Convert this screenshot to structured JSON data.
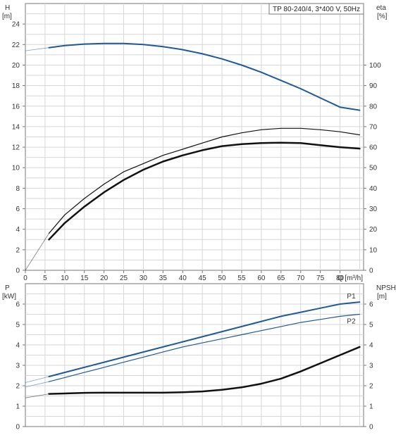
{
  "title": "TP 80-240/4, 3*400 V, 50Hz",
  "colors": {
    "blue": "#1f5a96",
    "black": "#111111",
    "grid": "#d6d6d6",
    "axis": "#777777",
    "text": "#333333"
  },
  "chart_data": [
    {
      "type": "line",
      "id": "top",
      "x_axis": {
        "label": "Q [m³/h]",
        "lim": [
          0,
          86
        ],
        "ticks": [
          0,
          5,
          10,
          15,
          20,
          25,
          30,
          35,
          40,
          45,
          50,
          55,
          60,
          65,
          70,
          75,
          80
        ]
      },
      "y_axis_left": {
        "label_line1": "H",
        "label_line2": "[m]",
        "lim": [
          0,
          26
        ],
        "ticks": [
          0,
          2,
          4,
          6,
          8,
          10,
          12,
          14,
          16,
          18,
          20,
          22,
          24
        ]
      },
      "y_axis_right": {
        "label_line1": "eta",
        "label_line2": "[%]",
        "lim": [
          0,
          130
        ],
        "ticks": [
          0,
          10,
          20,
          30,
          40,
          50,
          60,
          70,
          80,
          90,
          100
        ]
      },
      "grid": true,
      "series": [
        {
          "axis": "left",
          "color": "#1f5a96",
          "width": 2,
          "dashed_extension_to_zero": true,
          "x": [
            6,
            10,
            15,
            20,
            25,
            30,
            35,
            40,
            45,
            50,
            55,
            60,
            65,
            70,
            75,
            80,
            85
          ],
          "y": [
            21.7,
            21.9,
            22.05,
            22.1,
            22.1,
            22.0,
            21.8,
            21.5,
            21.1,
            20.6,
            20.0,
            19.3,
            18.5,
            17.7,
            16.8,
            15.9,
            15.6
          ]
        },
        {
          "axis": "right",
          "color": "#111111",
          "width": 1.2,
          "dashed_extension_to_zero": true,
          "x": [
            6,
            10,
            15,
            20,
            25,
            30,
            35,
            40,
            45,
            50,
            55,
            60,
            65,
            70,
            75,
            80,
            85
          ],
          "y": [
            18,
            27,
            35,
            42,
            48,
            52,
            56,
            59,
            62,
            65,
            67,
            68.5,
            69.2,
            69.2,
            68.5,
            67.5,
            66
          ]
        },
        {
          "axis": "right",
          "color": "#111111",
          "width": 2.5,
          "dashed_extension_to_zero": false,
          "x": [
            6,
            10,
            15,
            20,
            25,
            30,
            35,
            40,
            45,
            50,
            55,
            60,
            65,
            70,
            75,
            80,
            85
          ],
          "y": [
            15,
            23,
            31,
            38,
            44,
            49,
            53,
            56,
            58.5,
            60.5,
            61.5,
            62,
            62.2,
            62,
            61,
            60,
            59.3
          ]
        }
      ]
    },
    {
      "type": "line",
      "id": "bottom",
      "x_axis": {
        "label": "",
        "lim": [
          0,
          86
        ],
        "ticks": []
      },
      "y_axis_left": {
        "label_line1": "P",
        "label_line2": "[kW]",
        "lim": [
          0,
          7
        ],
        "ticks": [
          0,
          1,
          2,
          3,
          4,
          5,
          6
        ]
      },
      "y_axis_right": {
        "label_line1": "NPSH",
        "label_line2": "[m]",
        "lim": [
          0,
          7
        ],
        "ticks": [
          0,
          1,
          2,
          3,
          4,
          5,
          6
        ]
      },
      "grid": true,
      "series": [
        {
          "name": "P1",
          "axis": "left",
          "color": "#1f5a96",
          "width": 2,
          "dashed_extension_to_zero": true,
          "x": [
            6,
            10,
            15,
            20,
            25,
            30,
            35,
            40,
            45,
            50,
            55,
            60,
            65,
            70,
            75,
            80,
            85
          ],
          "y": [
            2.45,
            2.65,
            2.9,
            3.15,
            3.4,
            3.65,
            3.9,
            4.15,
            4.4,
            4.65,
            4.9,
            5.15,
            5.4,
            5.6,
            5.8,
            6.0,
            6.1
          ]
        },
        {
          "name": "P2",
          "axis": "left",
          "color": "#1f5a96",
          "width": 1.2,
          "dashed_extension_to_zero": true,
          "x": [
            6,
            10,
            15,
            20,
            25,
            30,
            35,
            40,
            45,
            50,
            55,
            60,
            65,
            70,
            75,
            80,
            85
          ],
          "y": [
            2.2,
            2.4,
            2.65,
            2.9,
            3.15,
            3.4,
            3.65,
            3.9,
            4.1,
            4.3,
            4.5,
            4.7,
            4.9,
            5.1,
            5.25,
            5.4,
            5.5
          ]
        },
        {
          "name": "",
          "axis": "right",
          "color": "#111111",
          "width": 2.5,
          "dashed_extension_to_zero": true,
          "x": [
            6,
            10,
            15,
            20,
            25,
            30,
            35,
            40,
            45,
            50,
            55,
            60,
            65,
            70,
            75,
            80,
            85
          ],
          "y": [
            1.6,
            1.62,
            1.65,
            1.66,
            1.66,
            1.66,
            1.66,
            1.68,
            1.72,
            1.8,
            1.92,
            2.1,
            2.35,
            2.7,
            3.1,
            3.5,
            3.9
          ]
        }
      ]
    }
  ]
}
